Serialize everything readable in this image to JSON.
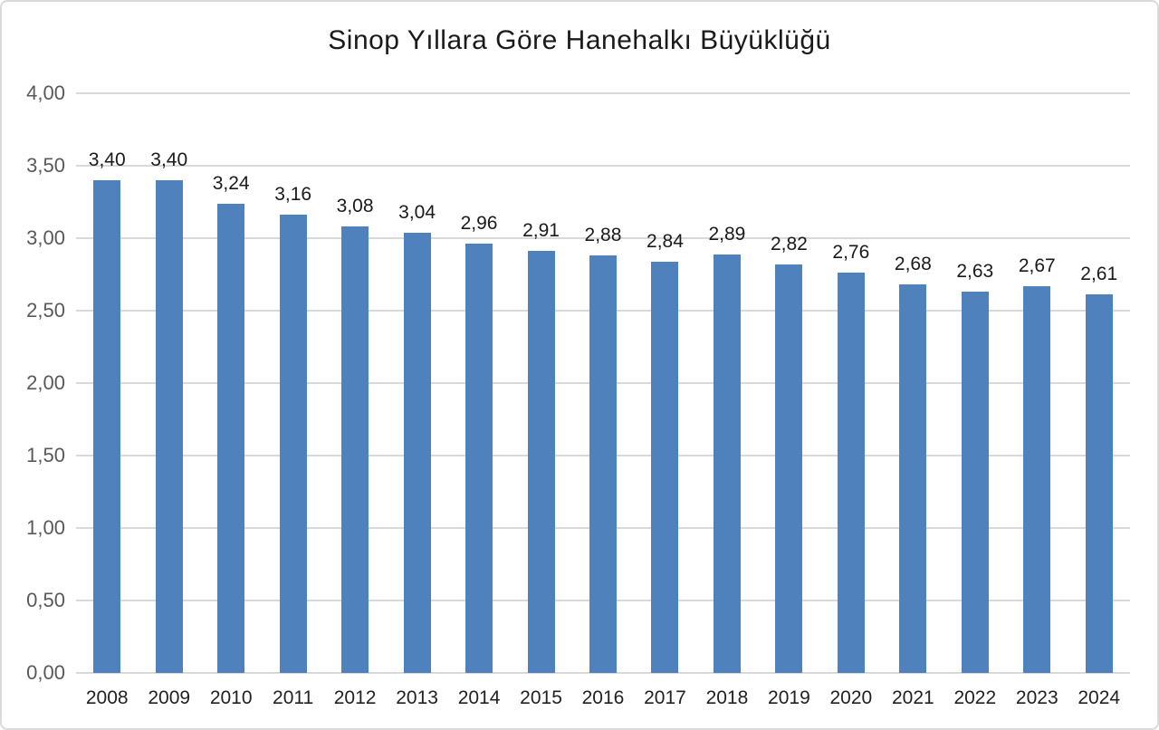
{
  "chart_data": {
    "type": "bar",
    "title": "Sinop Yıllara Göre Hanehalkı Büyüklüğü",
    "categories": [
      "2008",
      "2009",
      "2010",
      "2011",
      "2012",
      "2013",
      "2014",
      "2015",
      "2016",
      "2017",
      "2018",
      "2019",
      "2020",
      "2021",
      "2022",
      "2023",
      "2024"
    ],
    "values": [
      3.4,
      3.4,
      3.24,
      3.16,
      3.08,
      3.04,
      2.96,
      2.91,
      2.88,
      2.84,
      2.89,
      2.82,
      2.76,
      2.68,
      2.63,
      2.67,
      2.61
    ],
    "value_labels": [
      "3,40",
      "3,40",
      "3,24",
      "3,16",
      "3,08",
      "3,04",
      "2,96",
      "2,91",
      "2,88",
      "2,84",
      "2,89",
      "2,82",
      "2,76",
      "2,68",
      "2,63",
      "2,67",
      "2,61"
    ],
    "y_ticks": [
      "4,00",
      "3,50",
      "3,00",
      "2,50",
      "2,00",
      "1,50",
      "1,00",
      "0,50",
      "0,00"
    ],
    "y_tick_values": [
      4.0,
      3.5,
      3.0,
      2.5,
      2.0,
      1.5,
      1.0,
      0.5,
      0.0
    ],
    "ylim": [
      0,
      4
    ],
    "xlabel": "",
    "ylabel": "",
    "grid": true,
    "legend_position": "none",
    "bar_color": "#4f81bd",
    "grid_color": "#d9d9d9",
    "y_tick_color": "#595959",
    "label_color": "#1a1a1a"
  }
}
